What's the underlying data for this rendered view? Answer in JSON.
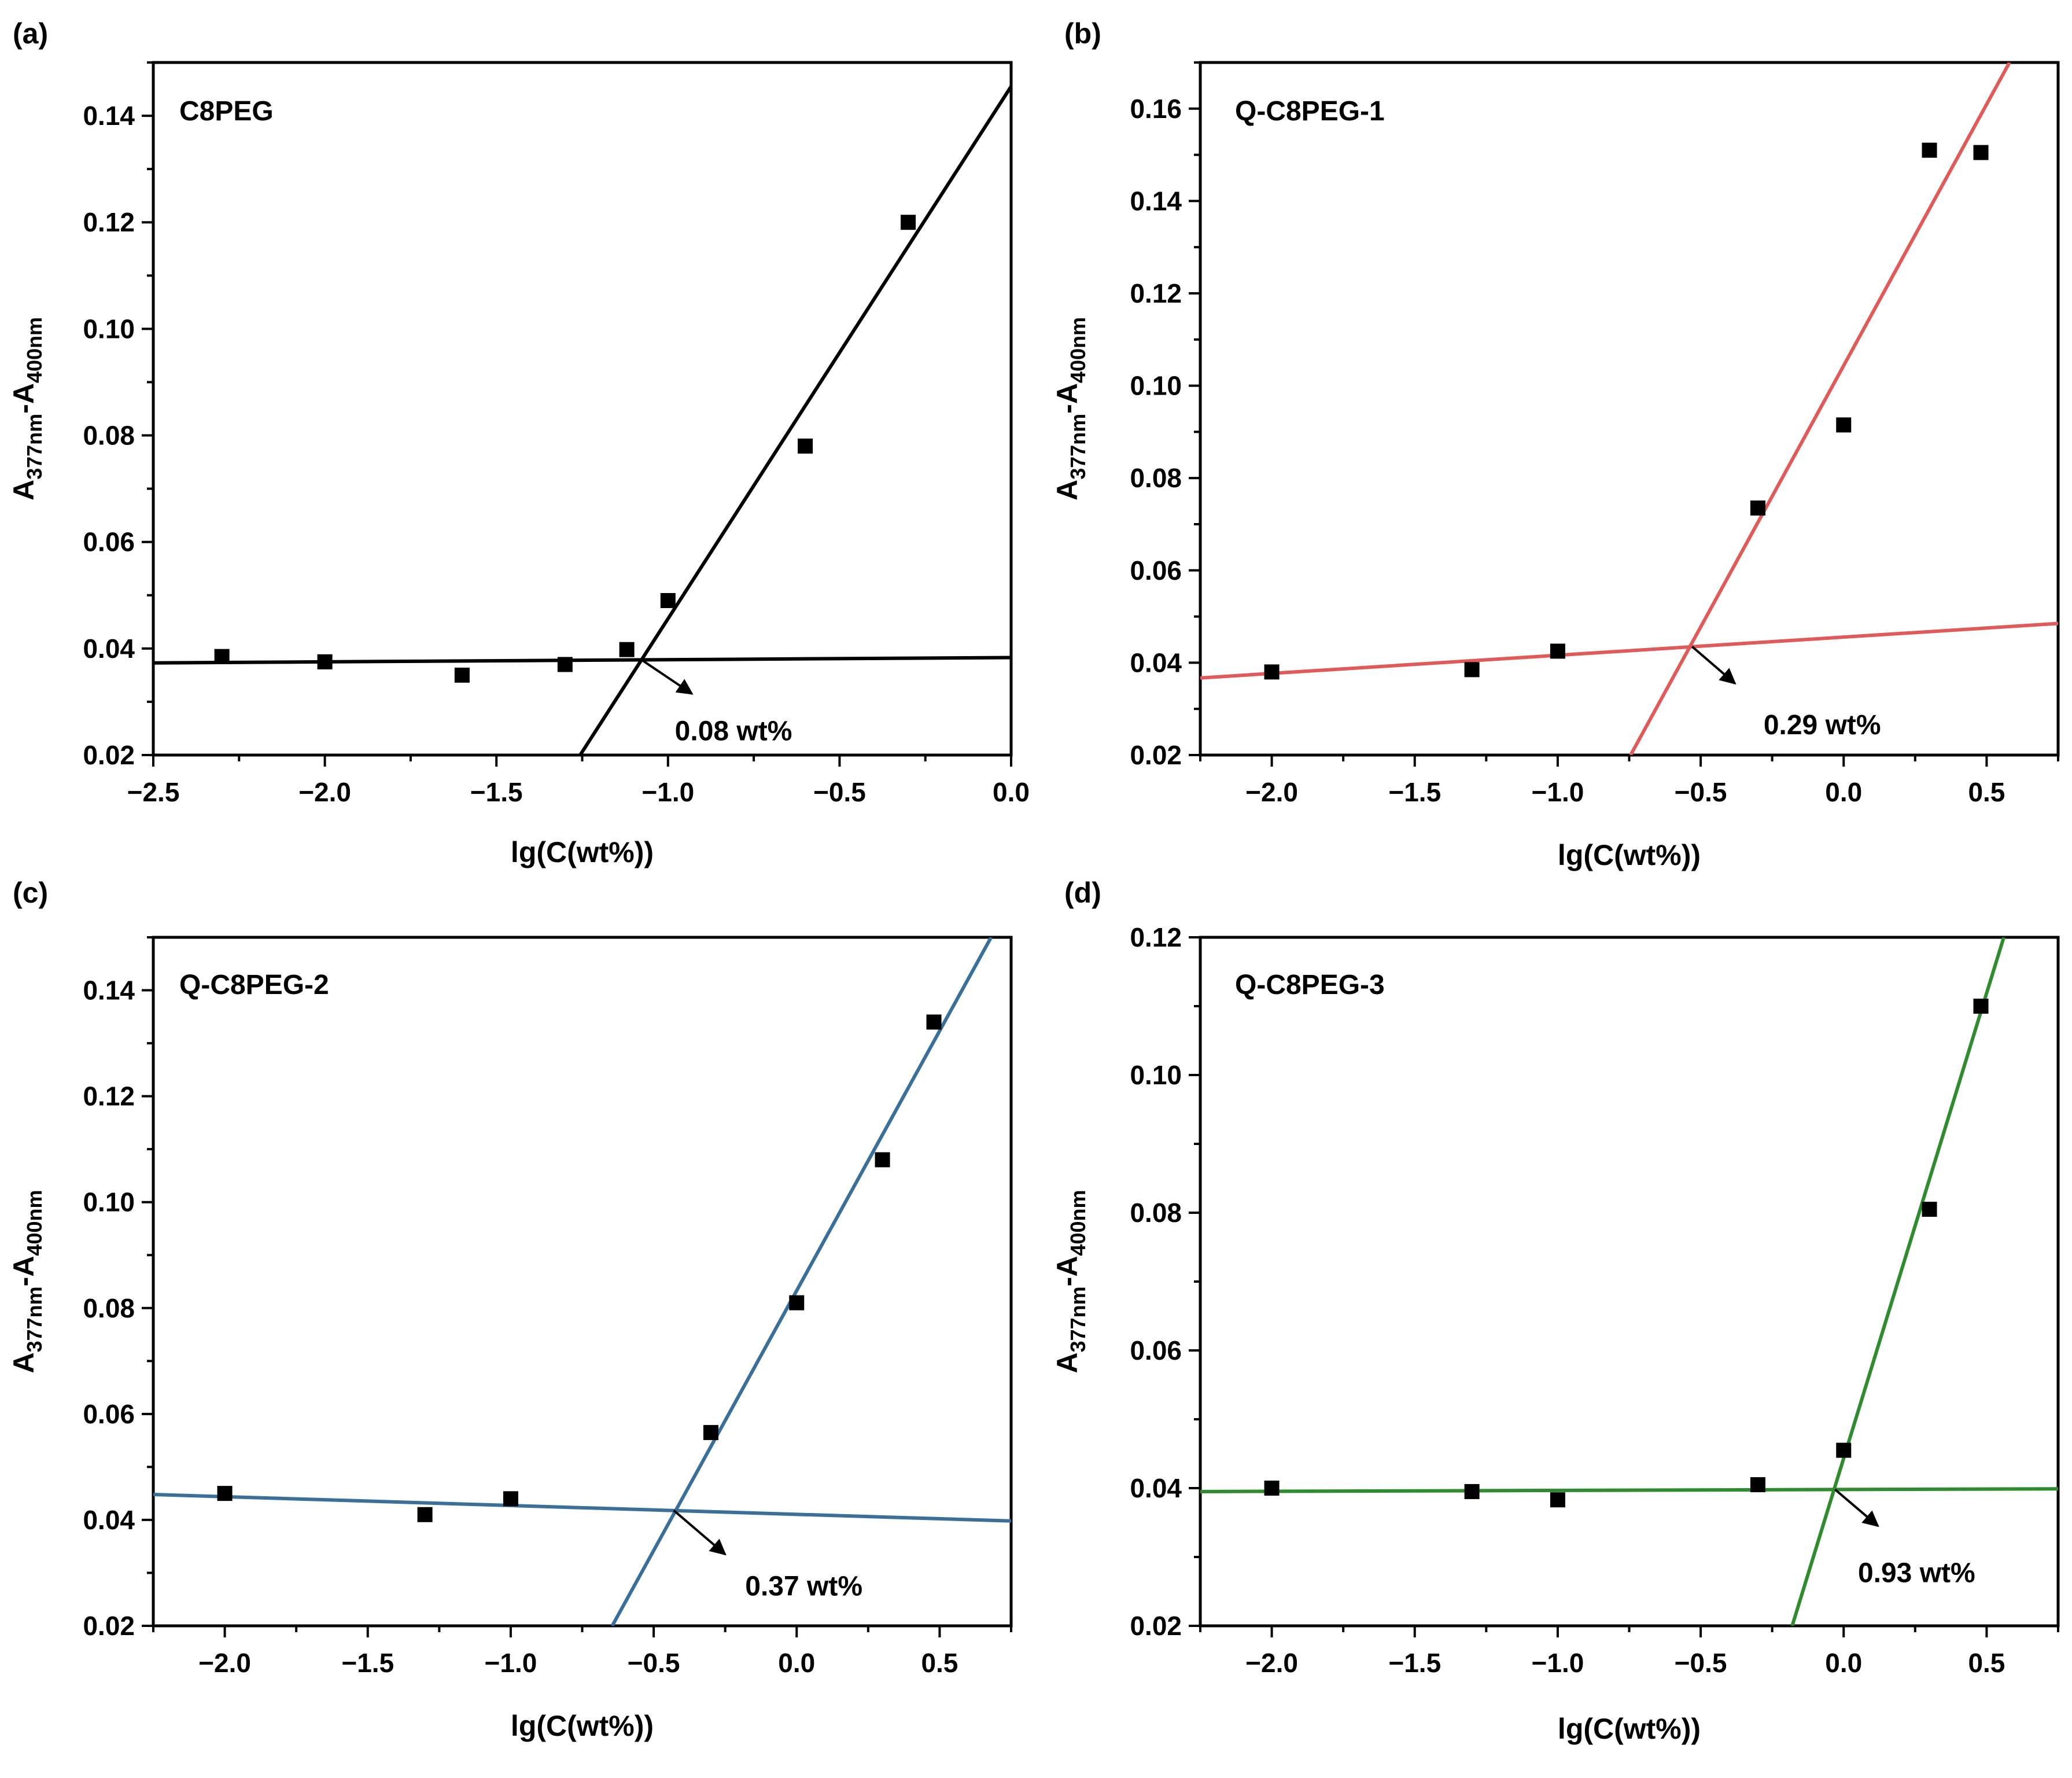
{
  "figure": {
    "chart_data": [
      {
        "type": "scatter",
        "panel_label": "(a)",
        "title": "C8PEG",
        "xlabel": "lg(C(wt%))",
        "ylabel": {
          "main": "A",
          "sub1": "377nm",
          "mid": "-A",
          "sub2": "400nm"
        },
        "xlim": [
          -2.5,
          0.0
        ],
        "ylim": [
          0.02,
          0.15
        ],
        "xticks": [
          -2.5,
          -2.0,
          -1.5,
          -1.0,
          -0.5,
          0.0
        ],
        "xtick_labels": [
          "−2.5",
          "−2.0",
          "−1.5",
          "−1.0",
          "−0.5",
          "0.0"
        ],
        "yticks": [
          0.02,
          0.04,
          0.06,
          0.08,
          0.1,
          0.12,
          0.14
        ],
        "ytick_labels": [
          "0.02",
          "0.04",
          "0.06",
          "0.08",
          "0.10",
          "0.12",
          "0.14"
        ],
        "grid": false,
        "line_color": "#000000",
        "x": [
          -2.3,
          -2.0,
          -1.6,
          -1.3,
          -1.12,
          -1.0,
          -0.6,
          -0.3
        ],
        "y": [
          0.0385,
          0.0375,
          0.035,
          0.037,
          0.0398,
          0.049,
          0.078,
          0.12
        ],
        "fit_lines": [
          {
            "x": [
              -2.5,
              0.0
            ],
            "y": [
              0.0373,
              0.0383
            ]
          },
          {
            "x": [
              -1.256,
              0.0
            ],
            "y": [
              0.02,
              0.1455
            ]
          }
        ],
        "annotation": {
          "text": "0.08 wt%",
          "point": [
            -1.08,
            0.038
          ],
          "arrow_to": [
            -0.93,
            0.0315
          ],
          "text_at": [
            -0.98,
            0.0245
          ]
        }
      },
      {
        "type": "scatter",
        "panel_label": "(b)",
        "title": "Q-C8PEG-1",
        "xlabel": "lg(C(wt%))",
        "ylabel": {
          "main": "A",
          "sub1": "377nm",
          "mid": "-A",
          "sub2": "400nm"
        },
        "xlim": [
          -2.25,
          0.75
        ],
        "ylim": [
          0.02,
          0.17
        ],
        "xticks": [
          -2.0,
          -1.5,
          -1.0,
          -0.5,
          0.0,
          0.5
        ],
        "xtick_labels": [
          "−2.0",
          "−1.5",
          "−1.0",
          "−0.5",
          "0.0",
          "0.5"
        ],
        "yticks": [
          0.02,
          0.04,
          0.06,
          0.08,
          0.1,
          0.12,
          0.14,
          0.16
        ],
        "ytick_labels": [
          "0.02",
          "0.04",
          "0.06",
          "0.08",
          "0.10",
          "0.12",
          "0.14",
          "0.16"
        ],
        "grid": false,
        "line_color": "#e05a5a",
        "x": [
          -2.0,
          -1.3,
          -1.0,
          -0.3,
          0.0,
          0.3,
          0.48
        ],
        "y": [
          0.038,
          0.0385,
          0.0425,
          0.0735,
          0.0915,
          0.151,
          0.1505
        ],
        "fit_lines": [
          {
            "x": [
              -2.25,
              0.75
            ],
            "y": [
              0.0367,
              0.0485
            ]
          },
          {
            "x": [
              -0.745,
              0.58
            ],
            "y": [
              0.02,
              0.17
            ]
          }
        ],
        "annotation": {
          "text": "0.29 wt%",
          "point": [
            -0.53,
            0.0435
          ],
          "arrow_to": [
            -0.38,
            0.0355
          ],
          "text_at": [
            -0.28,
            0.0265
          ]
        }
      },
      {
        "type": "scatter",
        "panel_label": "(c)",
        "title": "Q-C8PEG-2",
        "xlabel": "lg(C(wt%))",
        "ylabel": {
          "main": "A",
          "sub1": "377nm",
          "mid": "-A",
          "sub2": "400nm"
        },
        "xlim": [
          -2.25,
          0.75
        ],
        "ylim": [
          0.02,
          0.15
        ],
        "xticks": [
          -2.0,
          -1.5,
          -1.0,
          -0.5,
          0.0,
          0.5
        ],
        "xtick_labels": [
          "−2.0",
          "−1.5",
          "−1.0",
          "−0.5",
          "0.0",
          "0.5"
        ],
        "yticks": [
          0.02,
          0.04,
          0.06,
          0.08,
          0.1,
          0.12,
          0.14
        ],
        "ytick_labels": [
          "0.02",
          "0.04",
          "0.06",
          "0.08",
          "0.10",
          "0.12",
          "0.14"
        ],
        "grid": false,
        "line_color": "#3a6f99",
        "x": [
          -2.0,
          -1.3,
          -1.0,
          -0.3,
          0.0,
          0.3,
          0.48
        ],
        "y": [
          0.045,
          0.041,
          0.044,
          0.0565,
          0.081,
          0.108,
          0.134
        ],
        "fit_lines": [
          {
            "x": [
              -2.25,
              0.75
            ],
            "y": [
              0.0448,
              0.0398
            ]
          },
          {
            "x": [
              -0.645,
              0.68
            ],
            "y": [
              0.02,
              0.15
            ]
          }
        ],
        "annotation": {
          "text": "0.37 wt%",
          "point": [
            -0.43,
            0.0418
          ],
          "arrow_to": [
            -0.25,
            0.0335
          ],
          "text_at": [
            -0.18,
            0.0275
          ]
        }
      },
      {
        "type": "scatter",
        "panel_label": "(d)",
        "title": "Q-C8PEG-3",
        "xlabel": "lg(C(wt%))",
        "ylabel": {
          "main": "A",
          "sub1": "377nm",
          "mid": "-A",
          "sub2": "400nm"
        },
        "xlim": [
          -2.25,
          0.75
        ],
        "ylim": [
          0.02,
          0.12
        ],
        "xticks": [
          -2.0,
          -1.5,
          -1.0,
          -0.5,
          0.0,
          0.5
        ],
        "xtick_labels": [
          "−2.0",
          "−1.5",
          "−1.0",
          "−0.5",
          "0.0",
          "0.5"
        ],
        "yticks": [
          0.02,
          0.04,
          0.06,
          0.08,
          0.1,
          0.12
        ],
        "ytick_labels": [
          "0.02",
          "0.04",
          "0.06",
          "0.08",
          "0.10",
          "0.12"
        ],
        "grid": false,
        "line_color": "#2e8b2e",
        "x": [
          -2.0,
          -1.3,
          -1.0,
          -0.3,
          0.0,
          0.3,
          0.48
        ],
        "y": [
          0.04,
          0.0395,
          0.0383,
          0.0405,
          0.0455,
          0.0805,
          0.11
        ],
        "fit_lines": [
          {
            "x": [
              -2.25,
              0.75
            ],
            "y": [
              0.0395,
              0.0399
            ]
          },
          {
            "x": [
              -0.18,
              0.56
            ],
            "y": [
              0.02,
              0.12
            ]
          }
        ],
        "annotation": {
          "text": "0.93 wt%",
          "point": [
            -0.03,
            0.0398
          ],
          "arrow_to": [
            0.12,
            0.0345
          ],
          "text_at": [
            0.05,
            0.0277
          ]
        }
      }
    ]
  }
}
